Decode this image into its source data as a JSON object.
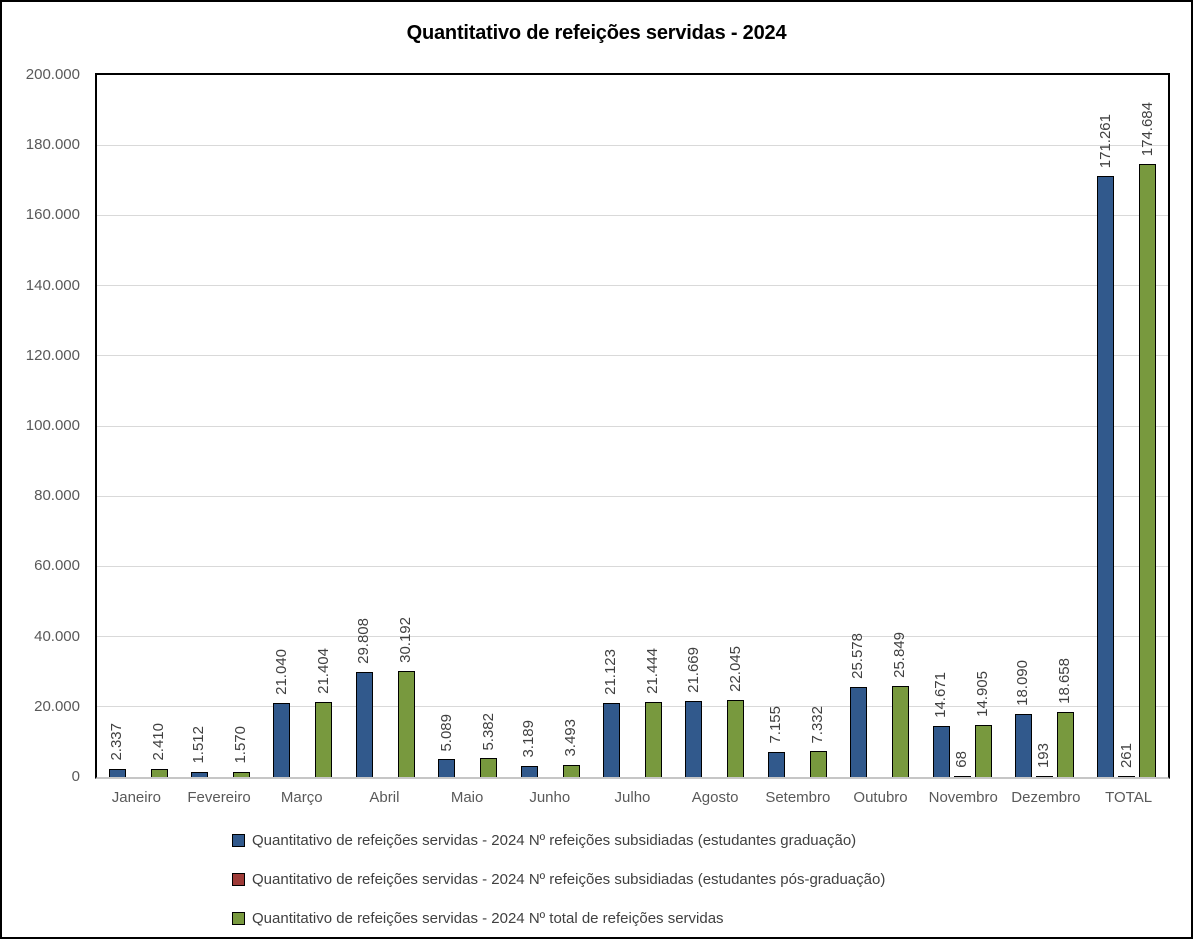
{
  "chart_data": {
    "type": "bar",
    "title": "Quantitativo de refeições servidas - 2024",
    "categories": [
      "Janeiro",
      "Fevereiro",
      "Março",
      "Abril",
      "Maio",
      "Junho",
      "Julho",
      "Agosto",
      "Setembro",
      "Outubro",
      "Novembro",
      "Dezembro",
      "TOTAL"
    ],
    "series": [
      {
        "name": "Quantitativo de refeições servidas - 2024 Nº refeições subsidiadas (estudantes graduação)",
        "color": "#31598C",
        "values": [
          2337,
          1512,
          21040,
          29808,
          5089,
          3189,
          21123,
          21669,
          7155,
          25578,
          14671,
          18090,
          171261
        ]
      },
      {
        "name": "Quantitativo de refeições servidas - 2024 Nº refeições subsidiadas (estudantes pós-graduação)",
        "color": "#9E3B38",
        "values": [
          0,
          0,
          0,
          0,
          0,
          0,
          0,
          0,
          0,
          0,
          68,
          193,
          261
        ]
      },
      {
        "name": "Quantitativo de refeições servidas - 2024 Nº total de refeições servidas",
        "color": "#78993E",
        "values": [
          2410,
          1570,
          21404,
          30192,
          5382,
          3493,
          21444,
          22045,
          7332,
          25849,
          14905,
          18658,
          174684
        ]
      }
    ],
    "ylim": [
      0,
      200000
    ],
    "ytick_step": 20000,
    "ytick_labels": [
      "0",
      "20.000",
      "40.000",
      "60.000",
      "80.000",
      "100.000",
      "120.000",
      "140.000",
      "160.000",
      "180.000",
      "200.000"
    ],
    "number_format": "thousands-dot",
    "grid": true,
    "legend_position": "bottom-left",
    "data_labels": "rotated-90-outside-end",
    "colors": {
      "bar_border": "#000000",
      "gridline": "#D9D9D9",
      "plot_border": "#000000",
      "bottom_axis_line": "#C6C6C6",
      "axis_text": "#595959",
      "data_label_text": "#404040",
      "legend_text": "#404040",
      "title_text": "#000000",
      "outer_border": "#000000",
      "background": "#FFFFFF"
    }
  }
}
